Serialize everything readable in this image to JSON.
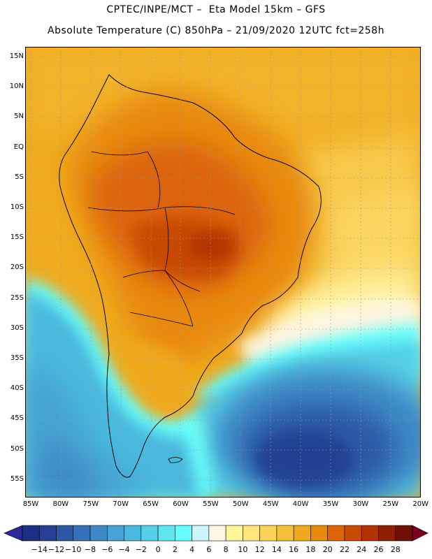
{
  "header": {
    "line1": "CPTEC/INPE/MCT –  Eta Model 15km – GFS",
    "line2": "Absolute Temperature (C) 850hPa – 21/09/2020 12UTC fct=258h"
  },
  "map": {
    "lat_labels": [
      "15N",
      "10N",
      "5N",
      "EQ",
      "5S",
      "10S",
      "15S",
      "20S",
      "25S",
      "30S",
      "35S",
      "40S",
      "45S",
      "50S",
      "55S"
    ],
    "lon_labels": [
      "85W",
      "80W",
      "75W",
      "70W",
      "65W",
      "60W",
      "55W",
      "50W",
      "45W",
      "40W",
      "35W",
      "30W",
      "25W",
      "20W"
    ],
    "field": "Absolute Temperature (C) at 850hPa",
    "region": "South America"
  },
  "colorbar": {
    "labels": [
      "-14",
      "-12",
      "-10",
      "-8",
      "-6",
      "-4",
      "-2",
      "0",
      "2",
      "4",
      "6",
      "8",
      "10",
      "12",
      "14",
      "16",
      "18",
      "20",
      "22",
      "24",
      "26",
      "28"
    ],
    "colors": [
      "#1b2f84",
      "#243f93",
      "#2c58a6",
      "#3671b8",
      "#3e88c6",
      "#45a2d3",
      "#4ab8dc",
      "#55d0e6",
      "#5ee6ee",
      "#66ffff",
      "#ccf5fb",
      "#fdf6e3",
      "#fff59a",
      "#ffe57a",
      "#fbd35a",
      "#f5c13d",
      "#f0a81e",
      "#e8890e",
      "#dc6407",
      "#c84a05",
      "#b23204",
      "#8e1e04",
      "#6e1104"
    ],
    "left_arrow_color": "#2a2a9a",
    "right_arrow_color": "#7a0020"
  }
}
